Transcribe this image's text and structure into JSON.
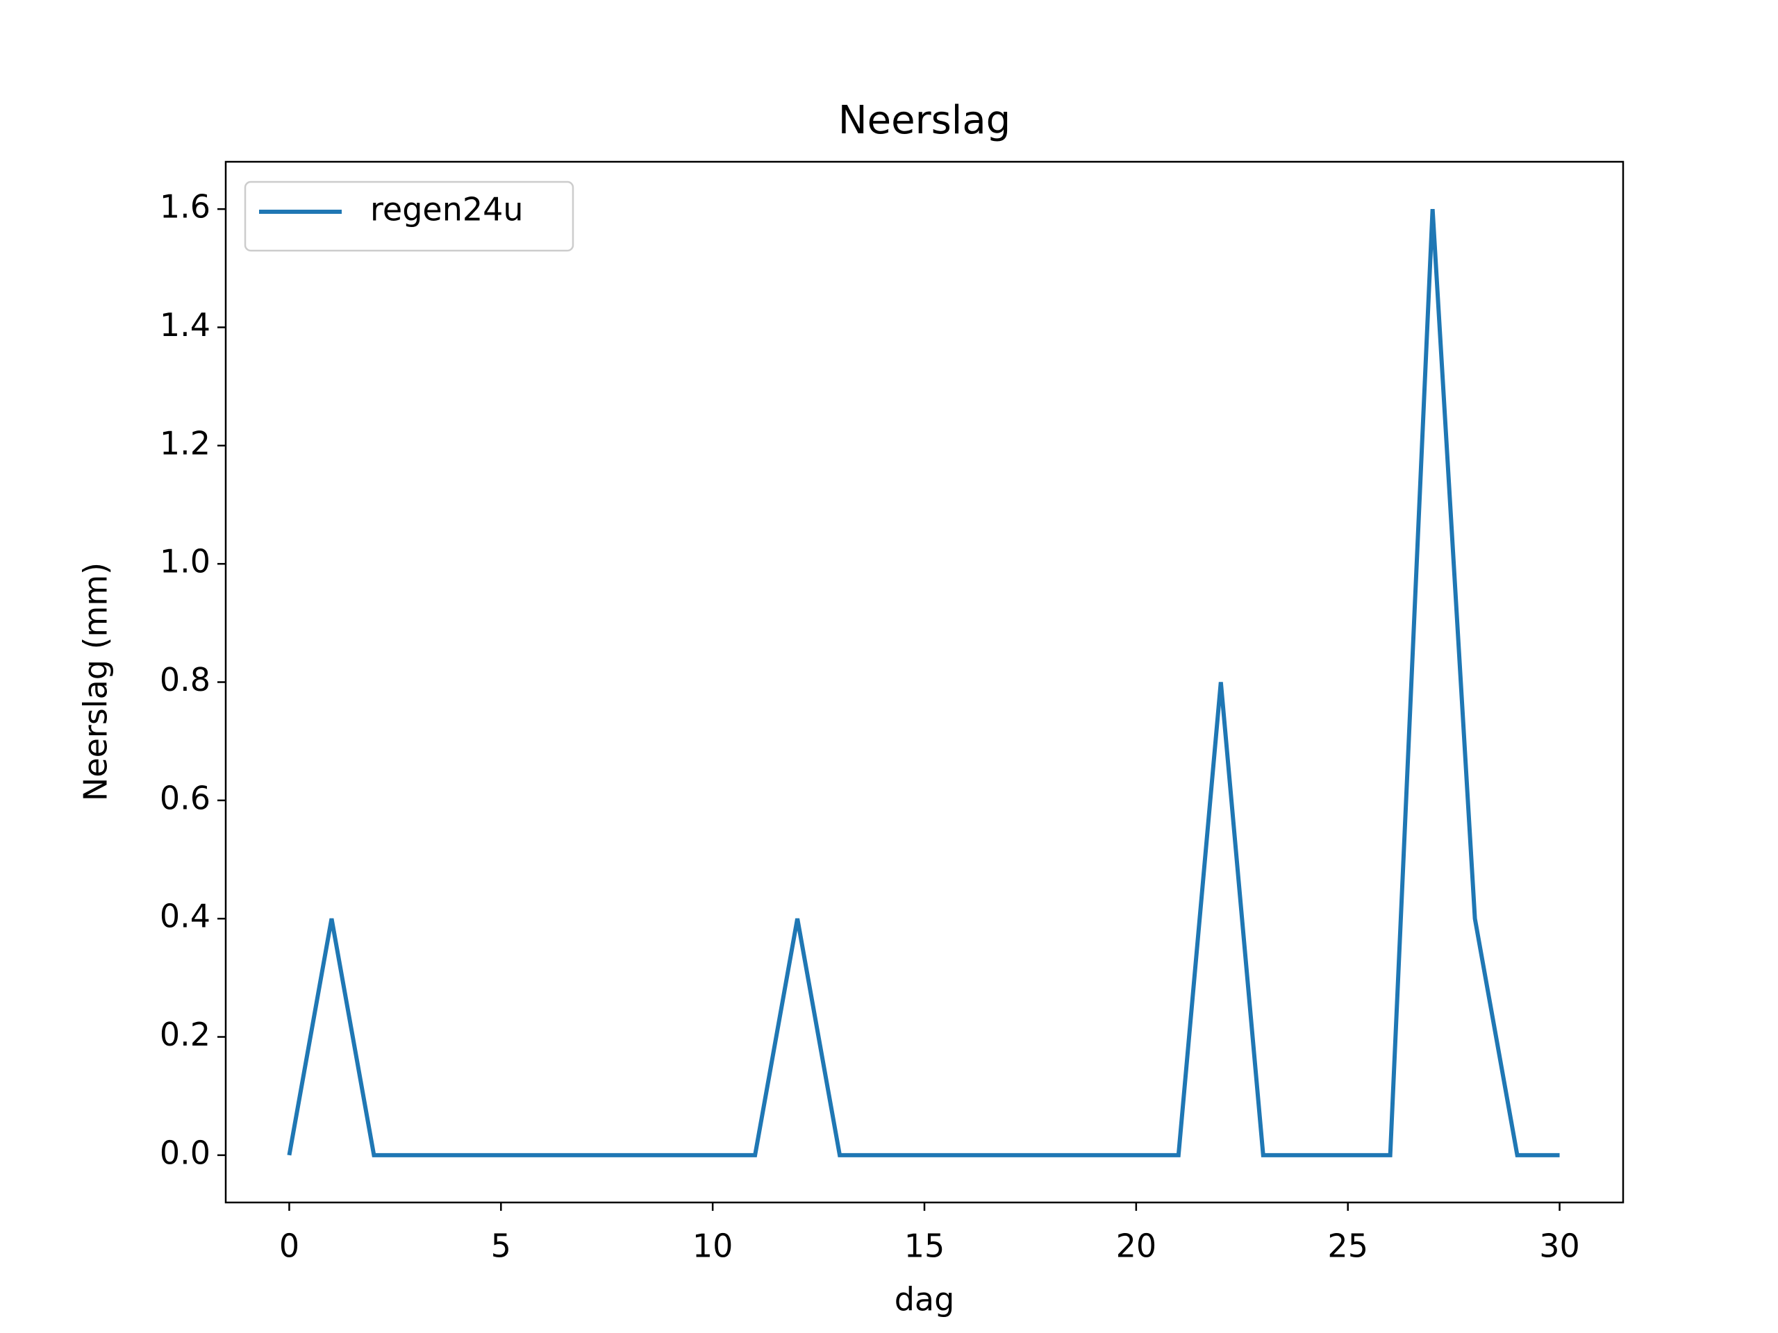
{
  "chart_data": {
    "type": "line",
    "title": "Neerslag",
    "xlabel": "dag",
    "ylabel": "Neerslag (mm)",
    "x": [
      0,
      1,
      2,
      3,
      4,
      5,
      6,
      7,
      8,
      9,
      10,
      11,
      12,
      13,
      14,
      15,
      16,
      17,
      18,
      19,
      20,
      21,
      22,
      23,
      24,
      25,
      26,
      27,
      28,
      29,
      30
    ],
    "series": [
      {
        "name": "regen24u",
        "color": "#1f77b4",
        "values": [
          0,
          0.4,
          0,
          0,
          0,
          0,
          0,
          0,
          0,
          0,
          0,
          0,
          0.4,
          0,
          0,
          0,
          0,
          0,
          0,
          0,
          0,
          0,
          0.8,
          0,
          0,
          0,
          0,
          1.6,
          0.4,
          0,
          0
        ]
      }
    ],
    "xlim": [
      -1.5,
      31.5
    ],
    "xticks": [
      0,
      5,
      10,
      15,
      20,
      25,
      30
    ],
    "ylim": [
      -0.08,
      1.68
    ],
    "yticks": [
      {
        "value": 0,
        "label": "0.0"
      },
      0.2,
      0.4,
      0.6,
      0.8,
      {
        "value": 1,
        "label": "1.0"
      },
      1.2,
      1.4,
      1.6
    ],
    "grid": false,
    "legend": "upper left"
  }
}
